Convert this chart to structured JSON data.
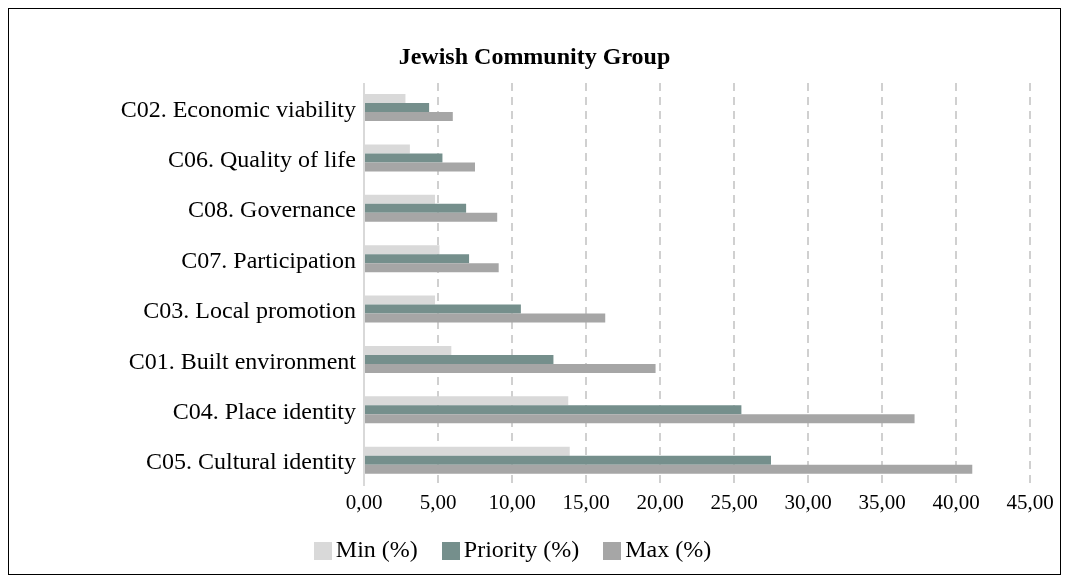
{
  "chart_data": {
    "type": "bar",
    "orientation": "horizontal",
    "title": "Jewish Community Group",
    "categories": [
      "C02. Economic viability",
      "C06. Quality of life",
      "C08. Governance",
      "C07. Participation",
      "C03. Local promotion",
      "C01. Built environment",
      "C04. Place identity",
      "C05. Cultural identity"
    ],
    "series": [
      {
        "name": "Min (%)",
        "color": "#d9d9d9",
        "values": [
          2.8,
          3.1,
          4.8,
          5.1,
          4.8,
          5.9,
          13.8,
          13.9
        ]
      },
      {
        "name": "Priority (%)",
        "color": "#758f8c",
        "values": [
          4.4,
          5.3,
          6.9,
          7.1,
          10.6,
          12.8,
          25.5,
          27.5
        ]
      },
      {
        "name": "Max (%)",
        "color": "#a6a6a6",
        "values": [
          6.0,
          7.5,
          9.0,
          9.1,
          16.3,
          19.7,
          37.2,
          41.1
        ]
      }
    ],
    "xlim": [
      0,
      45
    ],
    "xticks": [
      {
        "value": 0,
        "label": "0,00"
      },
      {
        "value": 5,
        "label": "5,00"
      },
      {
        "value": 10,
        "label": "10,00"
      },
      {
        "value": 15,
        "label": "15,00"
      },
      {
        "value": 20,
        "label": "20,00"
      },
      {
        "value": 25,
        "label": "25,00"
      },
      {
        "value": 30,
        "label": "30,00"
      },
      {
        "value": 35,
        "label": "35,00"
      },
      {
        "value": 40,
        "label": "40,00"
      },
      {
        "value": 45,
        "label": "45,00"
      }
    ],
    "grid": "x",
    "legend": "bottom"
  }
}
